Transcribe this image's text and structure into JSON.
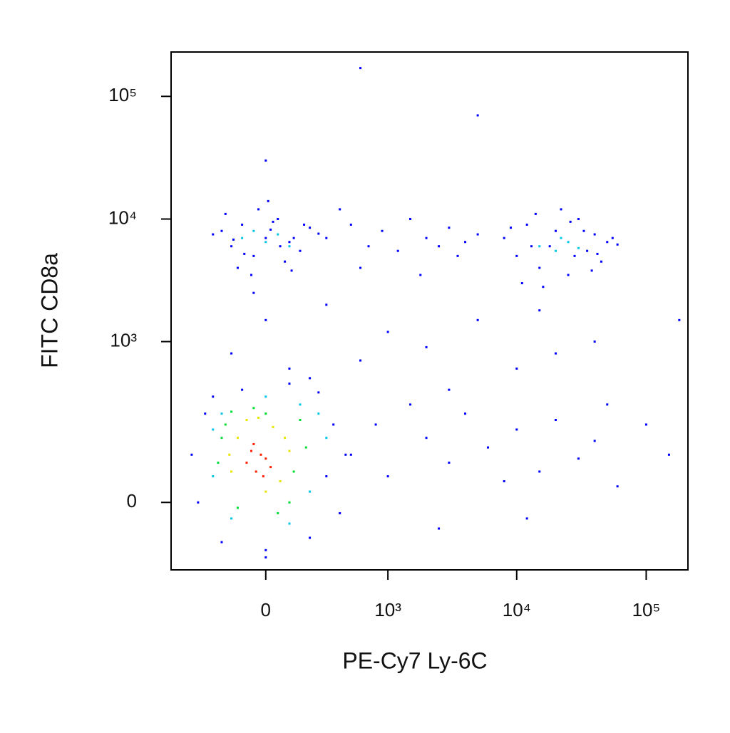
{
  "chart_data": {
    "type": "scatter",
    "x_label": "PE-Cy7 Ly-6C",
    "y_label": "FITC CD8a",
    "xscale": "biexponential",
    "yscale": "biexponential",
    "xlim": [
      -600,
      210000
    ],
    "ylim": [
      -160,
      230000
    ],
    "xticks": [
      0,
      {
        "value": 1000,
        "label": "10³"
      },
      {
        "value": 10000,
        "label": "10⁴"
      },
      {
        "value": 100000,
        "label": "10⁵"
      }
    ],
    "yticks": [
      0,
      {
        "value": 1000,
        "label": "10³"
      },
      {
        "value": 10000,
        "label": "10⁴"
      },
      {
        "value": 100000,
        "label": "10⁵"
      }
    ],
    "series": [
      {
        "color": "#0000ff",
        "x": [
          -200,
          -150,
          -100,
          -50,
          0,
          50,
          100,
          150,
          200,
          -250,
          -120,
          -30,
          30,
          80,
          120,
          -180,
          -60,
          10,
          60,
          170,
          -90,
          20,
          110,
          -140,
          250,
          8000,
          10000,
          12000,
          15000,
          18000,
          20000,
          25000,
          30000,
          35000,
          40000,
          45000,
          50000,
          9000,
          11000,
          14000,
          22000,
          28000,
          33000,
          38000,
          55000,
          16000,
          13000,
          26000,
          42000,
          60000,
          300,
          500,
          700,
          900,
          1200,
          1500,
          2000,
          2500,
          3000,
          4000,
          5000,
          600,
          1800,
          3500,
          400,
          -150,
          0,
          100,
          300,
          600,
          1000,
          2000,
          5000,
          10000,
          20000,
          40000,
          -50,
          200,
          3000,
          15000,
          500,
          800,
          1000,
          1500,
          2000,
          3000,
          4000,
          6000,
          8000,
          10000,
          15000,
          20000,
          30000,
          40000,
          60000,
          100000,
          150000,
          2500,
          12000,
          50000,
          -400,
          -350,
          -300,
          300,
          350,
          400,
          -200,
          0,
          200,
          -100,
          100,
          450,
          -250,
          250,
          0,
          600,
          5000,
          0,
          180000
        ],
        "values": [
          8000,
          6000,
          9000,
          5000,
          7000,
          10000,
          6500,
          5500,
          8500,
          7500,
          4000,
          12000,
          9500,
          4500,
          7000,
          11000,
          3500,
          14000,
          6000,
          9000,
          5200,
          8200,
          3800,
          6800,
          7600,
          7000,
          5000,
          9000,
          4000,
          6000,
          8000,
          3500,
          10000,
          5500,
          7500,
          4500,
          6500,
          8500,
          3000,
          11000,
          12000,
          5000,
          8000,
          3800,
          7000,
          2800,
          6000,
          9500,
          5200,
          6200,
          7000,
          9000,
          6000,
          8000,
          5500,
          10000,
          7000,
          6000,
          8500,
          6500,
          7500,
          4000,
          3500,
          5000,
          12000,
          800,
          1500,
          600,
          2000,
          700,
          1200,
          900,
          1500,
          600,
          800,
          1000,
          2500,
          500,
          400,
          1800,
          100,
          200,
          50,
          300,
          150,
          80,
          250,
          120,
          40,
          180,
          60,
          220,
          90,
          140,
          30,
          200,
          100,
          -50,
          -30,
          300,
          100,
          0,
          250,
          50,
          200,
          -20,
          -80,
          -100,
          -70,
          400,
          450,
          100,
          350,
          380,
          -120,
          170000,
          70000,
          30000,
          1500
        ]
      },
      {
        "color": "#00c8e6",
        "x": [
          -100,
          -50,
          0,
          50,
          100,
          15000,
          20000,
          25000,
          30000,
          22000,
          -250,
          -200,
          150,
          200,
          300,
          -150,
          250,
          0,
          100,
          -250
        ],
        "values": [
          7000,
          8000,
          6500,
          7500,
          6000,
          6000,
          5500,
          6500,
          5800,
          7000,
          50,
          250,
          300,
          20,
          150,
          -30,
          250,
          350,
          -40,
          180
        ]
      },
      {
        "color": "#00dd33",
        "x": [
          -220,
          -180,
          -120,
          100,
          150,
          180,
          -50,
          50,
          -200,
          0,
          120,
          -150
        ],
        "values": [
          80,
          200,
          -10,
          0,
          220,
          120,
          280,
          -20,
          150,
          250,
          60,
          260
        ]
      },
      {
        "color": "#e6e600",
        "x": [
          -150,
          -120,
          -80,
          -30,
          30,
          60,
          100,
          -160,
          0,
          80
        ],
        "values": [
          60,
          150,
          220,
          230,
          190,
          40,
          110,
          100,
          20,
          150
        ]
      },
      {
        "color": "#ff2000",
        "x": [
          -80,
          -60,
          -40,
          -20,
          0,
          20,
          -50,
          -10
        ],
        "values": [
          80,
          110,
          60,
          100,
          90,
          70,
          130,
          50
        ]
      }
    ]
  }
}
